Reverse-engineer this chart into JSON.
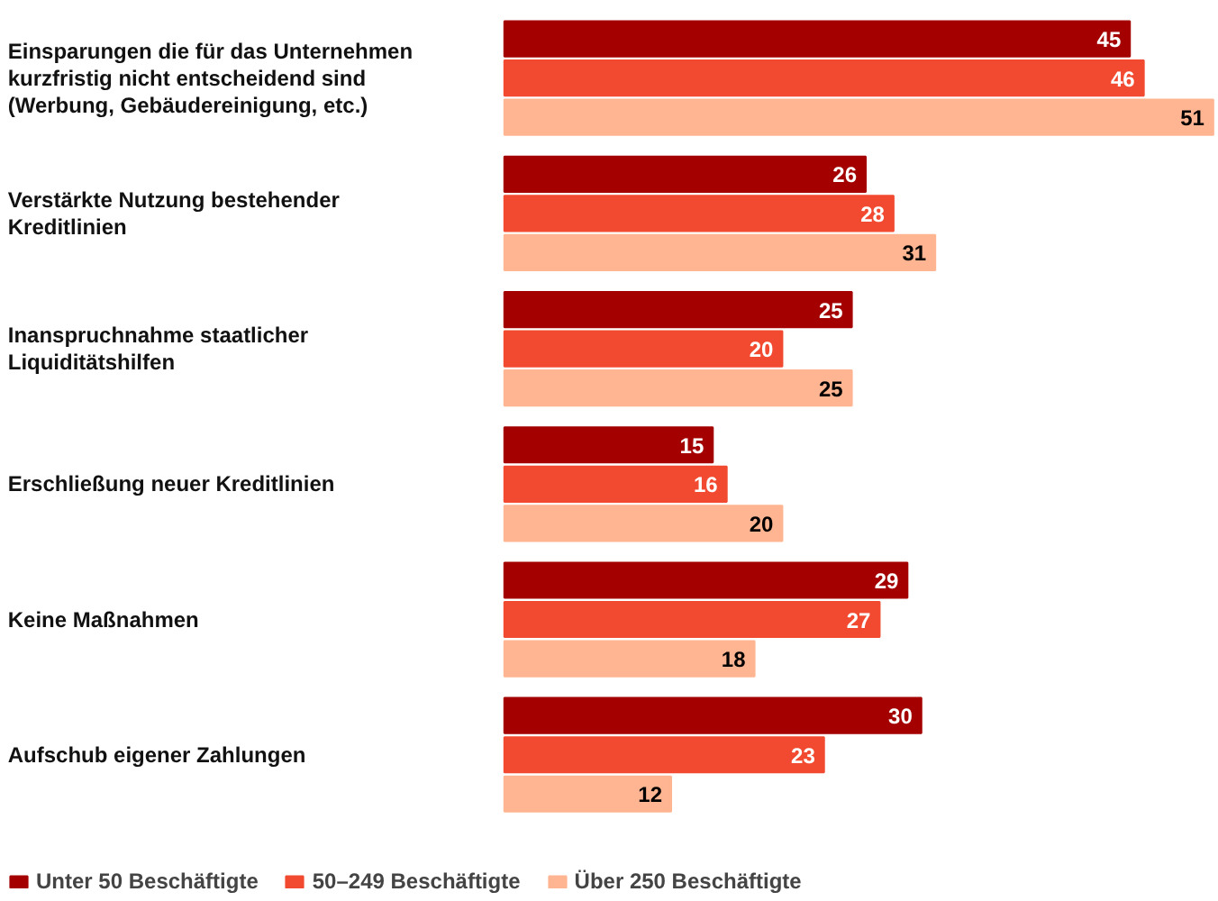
{
  "chart_data": {
    "type": "bar",
    "orientation": "horizontal",
    "data_labels": true,
    "legend": "bottom",
    "grid": false,
    "categories": [
      "Einsparungen die für das Unternehmen kurzfristig nicht entscheidend sind (Werbung, Gebäudereinigung, etc.)",
      "Verstärkte Nutzung bestehender Kreditlinien",
      "Inanspruchnahme staatlicher Liquiditätshilfen",
      "Erschließung neuer Kreditlinien",
      "Keine Maßnahmen",
      "Aufschub eigener Zahlungen"
    ],
    "series": [
      {
        "name": "Unter 50 Beschäftigte",
        "color": "#a50000",
        "values": [
          45,
          26,
          25,
          15,
          29,
          30
        ]
      },
      {
        "name": "50–249 Beschäftigte",
        "color": "#f24a30",
        "values": [
          46,
          28,
          20,
          16,
          27,
          23
        ]
      },
      {
        "name": "Über 250 Beschäftigte",
        "color": "#ffb591",
        "values": [
          51,
          31,
          25,
          20,
          18,
          12
        ]
      }
    ]
  }
}
